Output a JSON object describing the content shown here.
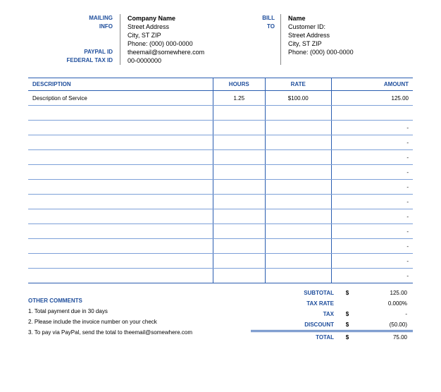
{
  "header": {
    "mailing_label_1": "MAILING",
    "mailing_label_2": "INFO",
    "paypal_label": "PAYPAL ID",
    "fedtax_label": "FEDERAL TAX ID",
    "bill_label_1": "BILL",
    "bill_label_2": "TO",
    "from": {
      "company": "Company Name",
      "street": "Street Address",
      "citystate": "City, ST  ZIP",
      "phone": "Phone: (000) 000-0000",
      "email": "theemail@somewhere.com",
      "fedtax": "00-0000000"
    },
    "to": {
      "name": "Name",
      "customer": "Customer ID:",
      "street": "Street Address",
      "citystate": "City, ST  ZIP",
      "phone": "Phone: (000) 000-0000"
    }
  },
  "table": {
    "headers": {
      "desc": "DESCRIPTION",
      "hours": "HOURS",
      "rate": "RATE",
      "amount": "AMOUNT"
    },
    "rows": [
      {
        "desc": "Description of Service",
        "hours": "1.25",
        "rate": "$100.00",
        "amount": "125.00"
      },
      {
        "desc": "",
        "hours": "",
        "rate": "",
        "amount": ""
      },
      {
        "desc": "",
        "hours": "",
        "rate": "",
        "amount": "-"
      },
      {
        "desc": "",
        "hours": "",
        "rate": "",
        "amount": "-"
      },
      {
        "desc": "",
        "hours": "",
        "rate": "",
        "amount": "-"
      },
      {
        "desc": "",
        "hours": "",
        "rate": "",
        "amount": "-"
      },
      {
        "desc": "",
        "hours": "",
        "rate": "",
        "amount": "-"
      },
      {
        "desc": "",
        "hours": "",
        "rate": "",
        "amount": "-"
      },
      {
        "desc": "",
        "hours": "",
        "rate": "",
        "amount": "-"
      },
      {
        "desc": "",
        "hours": "",
        "rate": "",
        "amount": "-"
      },
      {
        "desc": "",
        "hours": "",
        "rate": "",
        "amount": "-"
      },
      {
        "desc": "",
        "hours": "",
        "rate": "",
        "amount": "-"
      },
      {
        "desc": "",
        "hours": "",
        "rate": "",
        "amount": "-"
      }
    ]
  },
  "comments": {
    "header": "OTHER COMMENTS",
    "l1": "1. Total payment due in 30 days",
    "l2": "2. Please include the invoice number on your check",
    "l3": "3. To pay via PayPal, send the total to theemail@somewhere.com"
  },
  "totals": {
    "subtotal_label": "SUBTOTAL",
    "subtotal_cur": "$",
    "subtotal_val": "125.00",
    "taxrate_label": "TAX RATE",
    "taxrate_val": "0.000%",
    "tax_label": "TAX",
    "tax_cur": "$",
    "tax_val": "-",
    "discount_label": "DISCOUNT",
    "discount_cur": "$",
    "discount_val": "(50.00)",
    "total_label": "TOTAL",
    "total_cur": "$",
    "total_val": "75.00"
  }
}
